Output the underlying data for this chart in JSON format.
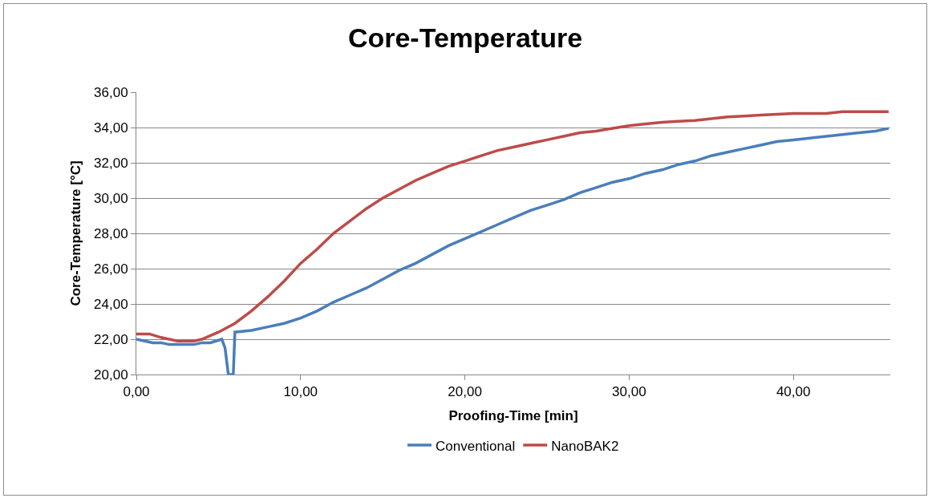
{
  "chart_data": {
    "type": "line",
    "title": "Core-Temperature",
    "xlabel": "Proofing-Time [min]",
    "ylabel": "Core-Temperature [°C]",
    "xlim": [
      0,
      45.9
    ],
    "xticks": [
      {
        "value": 0,
        "label": "0,00"
      },
      {
        "value": 10,
        "label": "10,00"
      },
      {
        "value": 20,
        "label": "20,00"
      },
      {
        "value": 30,
        "label": "30,00"
      },
      {
        "value": 40,
        "label": "40,00"
      }
    ],
    "ylim": [
      20,
      36
    ],
    "yticks": [
      {
        "value": 20,
        "label": "20,00"
      },
      {
        "value": 22,
        "label": "22,00"
      },
      {
        "value": 24,
        "label": "24,00"
      },
      {
        "value": 26,
        "label": "26,00"
      },
      {
        "value": 28,
        "label": "28,00"
      },
      {
        "value": 30,
        "label": "30,00"
      },
      {
        "value": 32,
        "label": "32,00"
      },
      {
        "value": 34,
        "label": "34,00"
      },
      {
        "value": 36,
        "label": "36,00"
      }
    ],
    "grid": "y",
    "legend": "bottom",
    "marker": "none",
    "line_style": "solid",
    "series": [
      {
        "name": "Conventional",
        "color": "#4a7ebb",
        "x": [
          0,
          0.5,
          1,
          1.5,
          2,
          3.5,
          4,
          4.5,
          5.2,
          5.4,
          5.6,
          5.9,
          6,
          7,
          8,
          9,
          10,
          11,
          12,
          13,
          14,
          15,
          16,
          17,
          18,
          19,
          20,
          21,
          22,
          23,
          24,
          25,
          26,
          27,
          28,
          29,
          30,
          31,
          32,
          33,
          34,
          35,
          36,
          37,
          38,
          39,
          40,
          41,
          42,
          43,
          44,
          45,
          45.8
        ],
        "values": [
          22.0,
          21.9,
          21.8,
          21.8,
          21.7,
          21.7,
          21.8,
          21.8,
          22.0,
          21.5,
          20.0,
          20.0,
          22.4,
          22.5,
          22.7,
          22.9,
          23.2,
          23.6,
          24.1,
          24.5,
          24.9,
          25.4,
          25.9,
          26.3,
          26.8,
          27.3,
          27.7,
          28.1,
          28.5,
          28.9,
          29.3,
          29.6,
          29.9,
          30.3,
          30.6,
          30.9,
          31.1,
          31.4,
          31.6,
          31.9,
          32.1,
          32.4,
          32.6,
          32.8,
          33.0,
          33.2,
          33.3,
          33.4,
          33.5,
          33.6,
          33.7,
          33.8,
          33.95
        ]
      },
      {
        "name": "NanoBAK2",
        "color": "#be4b48",
        "x": [
          0,
          0.8,
          1.5,
          2,
          2.5,
          3.5,
          4,
          5,
          6,
          7,
          8,
          9,
          10,
          11,
          12,
          13,
          14,
          15,
          16,
          17,
          18,
          19,
          20,
          21,
          22,
          23,
          24,
          25,
          26,
          27,
          28,
          29,
          30,
          31,
          32,
          33,
          34,
          35,
          36,
          37,
          38,
          39,
          40,
          42,
          43,
          45.8
        ],
        "values": [
          22.3,
          22.3,
          22.1,
          22.0,
          21.9,
          21.9,
          22.0,
          22.4,
          22.9,
          23.6,
          24.4,
          25.3,
          26.3,
          27.1,
          28.0,
          28.7,
          29.4,
          30.0,
          30.5,
          31.0,
          31.4,
          31.8,
          32.1,
          32.4,
          32.7,
          32.9,
          33.1,
          33.3,
          33.5,
          33.7,
          33.8,
          33.95,
          34.1,
          34.2,
          34.3,
          34.35,
          34.4,
          34.5,
          34.6,
          34.65,
          34.7,
          34.75,
          34.8,
          34.8,
          34.9,
          34.9
        ]
      }
    ]
  }
}
